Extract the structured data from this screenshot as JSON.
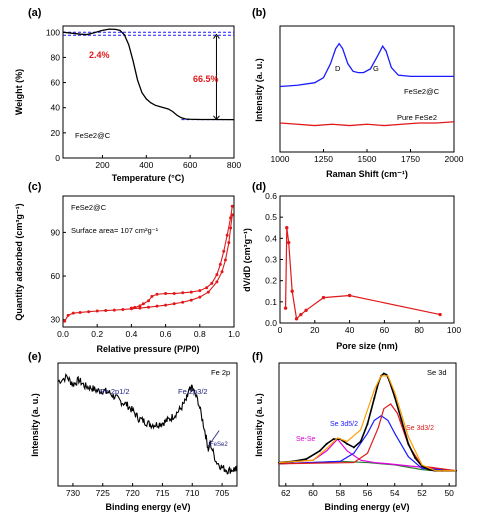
{
  "chart_data": [
    {
      "panel": "(a)",
      "type": "line",
      "xlabel": "Temperature (°C)",
      "ylabel": "Weight (%)",
      "xlim": [
        20,
        800
      ],
      "ylim": [
        0,
        105
      ],
      "xticks": [
        200,
        400,
        600,
        800
      ],
      "yticks": [
        0,
        20,
        40,
        60,
        80,
        100
      ],
      "sample": "FeSe2@C",
      "annotations": [
        {
          "text": "2.4%",
          "color": "#e0191b"
        },
        {
          "text": "66.5%",
          "color": "#e0191b"
        }
      ],
      "x": [
        20,
        60,
        100,
        130,
        160,
        200,
        230,
        260,
        280,
        300,
        320,
        340,
        360,
        380,
        400,
        420,
        440,
        460,
        480,
        500,
        520,
        540,
        560,
        580,
        600,
        650,
        700,
        800
      ],
      "y": [
        100,
        99.3,
        98.5,
        98.2,
        99.5,
        101.5,
        102.5,
        102.3,
        101.5,
        98,
        90,
        77,
        62,
        52,
        47,
        44,
        42,
        41,
        40,
        39,
        37,
        34,
        32,
        31,
        30.8,
        30.6,
        30.6,
        30.5
      ],
      "reference_lines": [
        100,
        97.6,
        30.5
      ]
    },
    {
      "panel": "(b)",
      "type": "line",
      "xlabel": "Raman Shift (cm⁻¹)",
      "ylabel": "Intensity (a. u.)",
      "xlim": [
        1000,
        2000
      ],
      "xticks": [
        1000,
        1250,
        1500,
        1750,
        2000
      ],
      "peak_labels": [
        "D",
        "G"
      ],
      "series": [
        {
          "name": "FeSe2@C",
          "color": "#1a1aff",
          "x": [
            1000,
            1100,
            1200,
            1250,
            1290,
            1320,
            1340,
            1360,
            1390,
            1420,
            1450,
            1480,
            1520,
            1560,
            1590,
            1610,
            1640,
            1680,
            1750,
            1850,
            2000
          ],
          "y": [
            0.52,
            0.53,
            0.55,
            0.59,
            0.7,
            0.82,
            0.86,
            0.82,
            0.7,
            0.64,
            0.63,
            0.63,
            0.66,
            0.76,
            0.84,
            0.8,
            0.67,
            0.61,
            0.6,
            0.6,
            0.6
          ]
        },
        {
          "name": "Pure FeSe2",
          "color": "#e0191b",
          "x": [
            1000,
            1100,
            1200,
            1300,
            1400,
            1500,
            1600,
            1700,
            1800,
            1900,
            2000
          ],
          "y": [
            0.23,
            0.22,
            0.21,
            0.22,
            0.21,
            0.22,
            0.21,
            0.22,
            0.23,
            0.23,
            0.24
          ]
        }
      ]
    },
    {
      "panel": "(c)",
      "type": "line",
      "xlabel": "Relative pressure (P/P0)",
      "ylabel": "Quantity adsorbed (cm³g⁻¹)",
      "xlim": [
        0,
        1.0
      ],
      "ylim": [
        25,
        115
      ],
      "xticks": [
        0.0,
        0.2,
        0.4,
        0.6,
        0.8,
        1.0
      ],
      "yticks": [
        30,
        60,
        90
      ],
      "sample": "FeSe2@C",
      "surface_area_text": "Surface area= 107 cm²g⁻¹",
      "series": [
        {
          "name": "adsorption",
          "x": [
            0.01,
            0.03,
            0.06,
            0.1,
            0.15,
            0.2,
            0.25,
            0.3,
            0.35,
            0.4,
            0.45,
            0.5,
            0.55,
            0.6,
            0.65,
            0.7,
            0.75,
            0.8,
            0.85,
            0.9,
            0.93,
            0.95,
            0.97,
            0.98,
            0.99
          ],
          "y": [
            29,
            33,
            34.5,
            35,
            35.5,
            36,
            36.3,
            36.6,
            37,
            37.5,
            38,
            38.6,
            39.3,
            40,
            41,
            42,
            43.5,
            45.5,
            49,
            56,
            63,
            71,
            83,
            93,
            102
          ]
        },
        {
          "name": "desorption",
          "x": [
            0.99,
            0.98,
            0.96,
            0.94,
            0.92,
            0.9,
            0.87,
            0.84,
            0.8,
            0.75,
            0.7,
            0.65,
            0.6,
            0.55,
            0.52,
            0.5,
            0.47,
            0.45,
            0.42,
            0.4
          ],
          "y": [
            108,
            100,
            88,
            77,
            68,
            61,
            55,
            52,
            50,
            49,
            48.5,
            48,
            48,
            47.5,
            46,
            43,
            41,
            39.5,
            38.5,
            38
          ]
        }
      ]
    },
    {
      "panel": "(d)",
      "type": "line",
      "xlabel": "Pore size (nm)",
      "ylabel": "dV/dD (cm³g⁻¹)",
      "xlim": [
        0,
        100
      ],
      "ylim": [
        0,
        0.6
      ],
      "xticks": [
        0,
        20,
        40,
        60,
        80,
        100
      ],
      "yticks": [
        0.0,
        0.1,
        0.2,
        0.3,
        0.4,
        0.5,
        0.6
      ],
      "x": [
        3.2,
        3.9,
        5.0,
        7.0,
        9.5,
        12,
        15,
        25,
        40,
        92
      ],
      "y": [
        0.07,
        0.45,
        0.38,
        0.15,
        0.02,
        0.04,
        0.06,
        0.12,
        0.13,
        0.04
      ]
    },
    {
      "panel": "(e)",
      "type": "line",
      "title": "Fe 2p",
      "xlabel": "Binding energy (eV)",
      "ylabel": "Intensity (a. u.)",
      "xlim": [
        732.5,
        702.5
      ],
      "xticks": [
        730,
        725,
        720,
        715,
        710,
        705
      ],
      "peak_labels": [
        "Fe 2p1/2",
        "Fe 2p3/2",
        "FeSe2"
      ],
      "x": [
        732.5,
        731,
        730,
        729,
        728,
        727,
        726,
        725,
        724,
        723,
        722,
        721,
        720,
        719,
        718,
        717,
        716,
        715,
        714,
        713,
        712,
        711,
        710.5,
        710,
        709,
        708,
        707.3,
        707,
        706,
        705,
        704,
        703,
        702.5
      ],
      "y": [
        0.68,
        0.71,
        0.66,
        0.69,
        0.65,
        0.64,
        0.62,
        0.62,
        0.61,
        0.58,
        0.55,
        0.53,
        0.49,
        0.44,
        0.42,
        0.4,
        0.4,
        0.41,
        0.43,
        0.46,
        0.5,
        0.56,
        0.62,
        0.64,
        0.55,
        0.38,
        0.24,
        0.28,
        0.16,
        0.12,
        0.1,
        0.11,
        0.1
      ]
    },
    {
      "panel": "(f)",
      "type": "line",
      "title": "Se 3d",
      "xlabel": "Binding energy (eV)",
      "ylabel": "Intensity (a. u.)",
      "xlim": [
        62.5,
        49.5
      ],
      "xticks": [
        62,
        60,
        58,
        56,
        54,
        52,
        50
      ],
      "peak_labels": [
        "Se-Se",
        "Se 3d5/2",
        "Se 3d3/2"
      ],
      "series": [
        {
          "name": "background",
          "color": "#2e7d32",
          "x": [
            62.5,
            60,
            58,
            56,
            55,
            54,
            53,
            52,
            51,
            49.5
          ],
          "y": [
            0.19,
            0.2,
            0.21,
            0.2,
            0.19,
            0.18,
            0.16,
            0.14,
            0.13,
            0.13
          ]
        },
        {
          "name": "Se-Se",
          "color": "#e000e0",
          "x": [
            62.5,
            60,
            59,
            58.2,
            57.5,
            56.5,
            55.5,
            54.5,
            49.5
          ],
          "y": [
            0.2,
            0.22,
            0.3,
            0.4,
            0.3,
            0.22,
            0.2,
            0.19,
            0.13
          ]
        },
        {
          "name": "Se 3d5/2",
          "color": "#1a1aff",
          "x": [
            62.5,
            58,
            57,
            56,
            55.5,
            55,
            54.5,
            54,
            53,
            52,
            49.5
          ],
          "y": [
            0.19,
            0.21,
            0.28,
            0.45,
            0.56,
            0.6,
            0.56,
            0.45,
            0.25,
            0.15,
            0.13
          ]
        },
        {
          "name": "Se 3d3/2",
          "color": "#e0191b",
          "x": [
            62.5,
            57,
            56,
            55.2,
            54.8,
            54.3,
            53.8,
            53,
            52,
            49.5
          ],
          "y": [
            0.19,
            0.2,
            0.28,
            0.5,
            0.66,
            0.7,
            0.62,
            0.35,
            0.17,
            0.13
          ]
        },
        {
          "name": "raw",
          "color": "#000000",
          "x": [
            62.5,
            61.5,
            60.5,
            59.5,
            59,
            58.5,
            58,
            57.5,
            57,
            56.5,
            56,
            55.5,
            55.2,
            55,
            54.8,
            54.6,
            54.4,
            54,
            53.5,
            53,
            52.5,
            52,
            51.5,
            51,
            50.5,
            49.5
          ],
          "y": [
            0.2,
            0.21,
            0.23,
            0.3,
            0.36,
            0.4,
            0.4,
            0.36,
            0.33,
            0.38,
            0.53,
            0.75,
            0.88,
            0.94,
            0.96,
            0.95,
            0.9,
            0.76,
            0.56,
            0.36,
            0.24,
            0.17,
            0.14,
            0.13,
            0.13,
            0.13
          ]
        },
        {
          "name": "fit",
          "color": "#ffa000",
          "x": [
            62.5,
            60,
            59,
            58.2,
            57.5,
            56.5,
            55.5,
            55,
            54.5,
            54,
            53,
            52,
            51,
            49.5
          ],
          "y": [
            0.2,
            0.22,
            0.32,
            0.41,
            0.38,
            0.48,
            0.82,
            0.94,
            0.94,
            0.8,
            0.42,
            0.18,
            0.13,
            0.13
          ]
        }
      ]
    }
  ],
  "labels": {
    "a": {
      "panel": "(a)",
      "ylabel": "Weight (%)",
      "xlabel": "Temperature (°C)",
      "sample": "FeSe2@C",
      "ann1": "2.4%",
      "ann2": "66.5%"
    },
    "b": {
      "panel": "(b)",
      "ylabel": "Intensity (a. u.)",
      "xlabel": "Raman Shift (cm⁻¹)",
      "D": "D",
      "G": "G",
      "s1": "FeSe2@C",
      "s2": "Pure FeSe2"
    },
    "c": {
      "panel": "(c)",
      "ylabel": "Quantity adsorbed (cm³g⁻¹)",
      "xlabel": "Relative pressure (P/P0)",
      "sample": "FeSe2@C",
      "area": "Surface area= 107 cm²g⁻¹"
    },
    "d": {
      "panel": "(d)",
      "ylabel": "dV/dD (cm³g⁻¹)",
      "xlabel": "Pore size (nm)"
    },
    "e": {
      "panel": "(e)",
      "ylabel": "Intensity (a. u.)",
      "xlabel": "Binding energy (eV)",
      "title": "Fe 2p",
      "p1": "Fe 2p1/2",
      "p2": "Fe 2p3/2",
      "p3": "FeSe2"
    },
    "f": {
      "panel": "(f)",
      "ylabel": "Intensity (a. u.)",
      "xlabel": "Binding energy (eV)",
      "title": "Se 3d",
      "p1": "Se-Se",
      "p2": "Se 3d5/2",
      "p3": "Se 3d3/2"
    }
  }
}
